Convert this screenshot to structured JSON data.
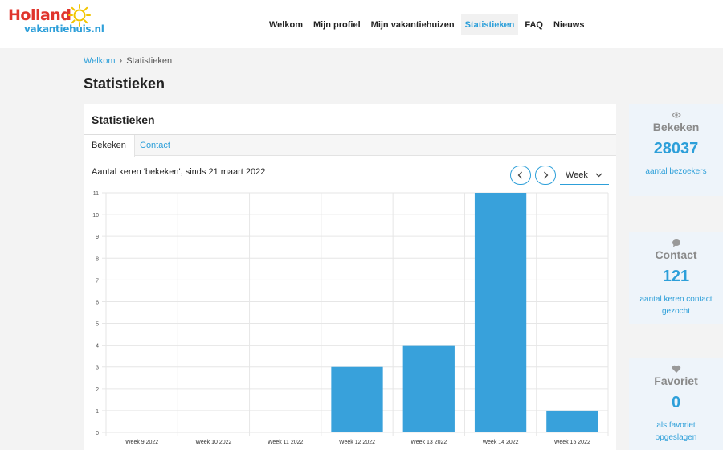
{
  "header": {
    "logo": {
      "line1": "Holland",
      "line2": "vakantiehuis.nl"
    },
    "nav": [
      {
        "label": "Welkom",
        "active": false
      },
      {
        "label": "Mijn profiel",
        "active": false
      },
      {
        "label": "Mijn vakantiehuizen",
        "active": false
      },
      {
        "label": "Statistieken",
        "active": true
      },
      {
        "label": "FAQ",
        "active": false
      },
      {
        "label": "Nieuws",
        "active": false
      }
    ]
  },
  "breadcrumb": {
    "home": "Welkom",
    "separator": "›",
    "current": "Statistieken"
  },
  "page_title": "Statistieken",
  "card": {
    "title": "Statistieken",
    "tabs": [
      {
        "label": "Bekeken",
        "active": true
      },
      {
        "label": "Contact",
        "active": false
      }
    ],
    "caption": "Aantal keren 'bekeken', sinds 21 maart 2022",
    "period": "Week"
  },
  "chart_data": {
    "type": "bar",
    "categories": [
      "Week 9 2022",
      "Week 10 2022",
      "Week 11 2022",
      "Week 12 2022",
      "Week 13 2022",
      "Week 14 2022",
      "Week 15 2022"
    ],
    "values": [
      0,
      0,
      0,
      3,
      4,
      11,
      1
    ],
    "ylim": [
      0,
      11
    ],
    "yticks": [
      0,
      1,
      2,
      3,
      4,
      5,
      6,
      7,
      8,
      9,
      10,
      11
    ],
    "grid": true,
    "bar_color": "#38a1db"
  },
  "stats": [
    {
      "icon": "eye-icon",
      "label": "Bekeken",
      "value": "28037",
      "desc": "aantal bezoekers"
    },
    {
      "icon": "chat-bubble-icon",
      "label": "Contact",
      "value": "121",
      "desc": "aantal keren contact gezocht"
    },
    {
      "icon": "heart-icon",
      "label": "Favoriet",
      "value": "0",
      "desc": "als favoriet opgeslagen"
    }
  ],
  "colors": {
    "accent": "#2d9fd9",
    "logo_red": "#e0342c",
    "sun": "#f2c500"
  }
}
